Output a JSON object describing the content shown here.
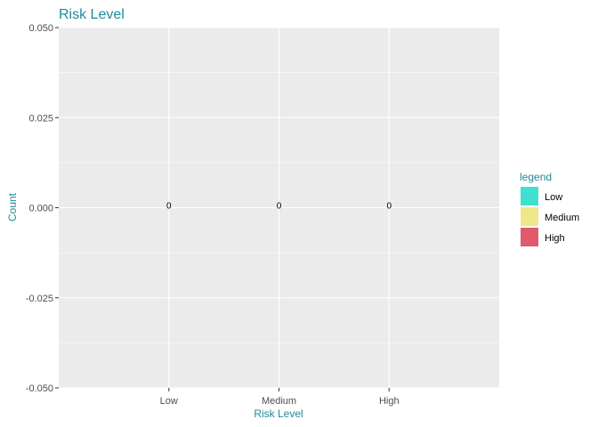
{
  "chart_data": {
    "type": "bar",
    "title": "Risk Level",
    "xlabel": "Risk Level",
    "ylabel": "Count",
    "categories": [
      "Low",
      "Medium",
      "High"
    ],
    "values": [
      0,
      0,
      0
    ],
    "data_labels": [
      "0",
      "0",
      "0"
    ],
    "ylim": [
      -0.05,
      0.05
    ],
    "yticks": [
      -0.05,
      -0.025,
      0,
      0.025,
      0.05
    ],
    "ytick_labels": [
      "-0.050",
      "-0.025",
      "0.000",
      "0.025",
      "0.050"
    ],
    "grid": true,
    "legend": {
      "title": "legend",
      "placement": "right",
      "entries": [
        {
          "label": "Low",
          "color": "#40E0D0"
        },
        {
          "label": "Medium",
          "color": "#F0E68C"
        },
        {
          "label": "High",
          "color": "#E05A6A"
        }
      ]
    },
    "colors": {
      "panel_background": "#EBEBEB",
      "grid": "#FFFFFF",
      "accent_text": "#1F8A99",
      "tick_text": "#4D4D4D",
      "tick_mark": "#333333"
    }
  }
}
